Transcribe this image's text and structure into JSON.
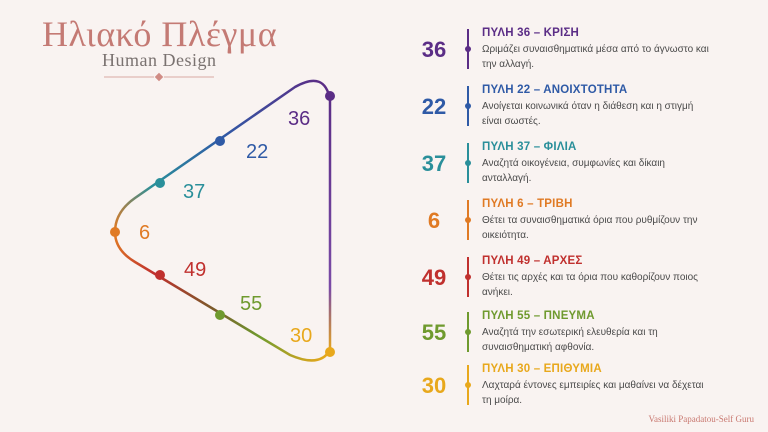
{
  "header": {
    "title": "Ηλιακό Πλέγμα",
    "subtitle": "Human Design"
  },
  "triangle_labels": [
    {
      "num": "36",
      "color": "#5b2d86"
    },
    {
      "num": "22",
      "color": "#2f5aa6"
    },
    {
      "num": "37",
      "color": "#2a8f9a"
    },
    {
      "num": "6",
      "color": "#e07a24"
    },
    {
      "num": "49",
      "color": "#c0302e"
    },
    {
      "num": "55",
      "color": "#6f9a2e"
    },
    {
      "num": "30",
      "color": "#e8a81c"
    }
  ],
  "gates": [
    {
      "num": "36",
      "title": "ΠΥΛΗ 36 – ΚΡΙΣΗ",
      "desc": "Ωριμάζει συναισθηματικά μέσα από το άγνωστο και την αλλαγή.",
      "color": "#5b2d86"
    },
    {
      "num": "22",
      "title": "ΠΥΛΗ 22 – ΑΝΟΙΧΤΟΤΗΤΑ",
      "desc": "Ανοίγεται κοινωνικά όταν η διάθεση και η στιγμή είναι σωστές.",
      "color": "#2f5aa6"
    },
    {
      "num": "37",
      "title": "ΠΥΛΗ 37 – ΦΙΛΙΑ",
      "desc": "Αναζητά οικογένεια, συμφωνίες και δίκαιη ανταλλαγή.",
      "color": "#2a8f9a"
    },
    {
      "num": "6",
      "title": "ΠΥΛΗ 6 – ΤΡΙΒΗ",
      "desc": "Θέτει τα συναισθηματικά όρια που ρυθμίζουν την οικειότητα.",
      "color": "#e07a24"
    },
    {
      "num": "49",
      "title": "ΠΥΛΗ 49 – ΑΡΧΕΣ",
      "desc": "Θέτει τις αρχές και τα όρια που καθορίζουν ποιος ανήκει.",
      "color": "#c0302e"
    },
    {
      "num": "55",
      "title": "ΠΥΛΗ 55 – ΠΝΕΥΜΑ",
      "desc": "Αναζητά την εσωτερική ελευθερία και τη συναισθηματική αφθονία.",
      "color": "#6f9a2e"
    },
    {
      "num": "30",
      "title": "ΠΥΛΗ 30 – ΕΠΙΘΥΜΙΑ",
      "desc": "Λαχταρά έντονες εμπειρίες και μαθαίνει να δέχεται τη μοίρα.",
      "color": "#e8a81c"
    }
  ],
  "credit": "Vasiliki Papadatou-Self Guru"
}
